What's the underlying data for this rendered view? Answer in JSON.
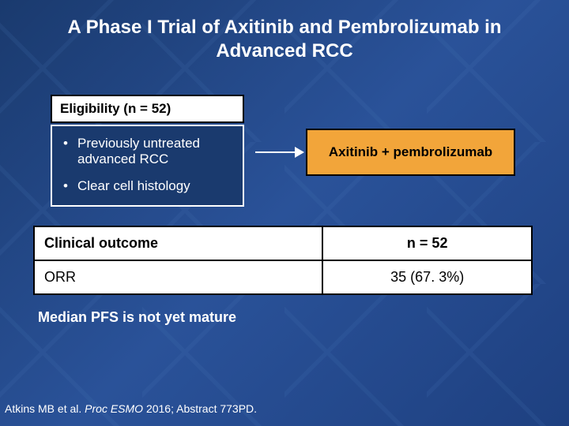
{
  "title": "A Phase I Trial of Axitinib and Pembrolizumab in Advanced RCC",
  "eligibility": {
    "header": "Eligibility (n = 52)",
    "items": [
      "Previously untreated advanced RCC",
      "Clear cell histology"
    ]
  },
  "treatment_box": "Axitinib + pembrolizumab",
  "table": {
    "header_left": "Clinical outcome",
    "header_right": "n = 52",
    "rows": [
      {
        "label": "ORR",
        "value": "35 (67. 3%)"
      }
    ]
  },
  "note": "Median PFS is not yet mature",
  "citation": {
    "author": "Atkins MB et al. ",
    "journal": "Proc ESMO",
    "rest": " 2016; Abstract 773PD."
  },
  "style": {
    "bg_gradient": [
      "#1a3a6e",
      "#2a5299",
      "#1e4080"
    ],
    "title_color": "#ffffff",
    "title_fontsize": 24,
    "elig_header_bg": "#ffffff",
    "elig_header_text": "#000000",
    "elig_box_bg": "#1a3a6e",
    "elig_box_border": "#ffffff",
    "elig_box_text": "#ffffff",
    "arrow_color": "#ffffff",
    "treatment_bg": "#f2a53a",
    "treatment_border": "#000000",
    "treatment_text": "#000000",
    "table_bg": "#ffffff",
    "table_border": "#000000",
    "table_text": "#000000",
    "body_fontsize": 17,
    "table_fontsize": 18,
    "citation_fontsize": 14
  }
}
